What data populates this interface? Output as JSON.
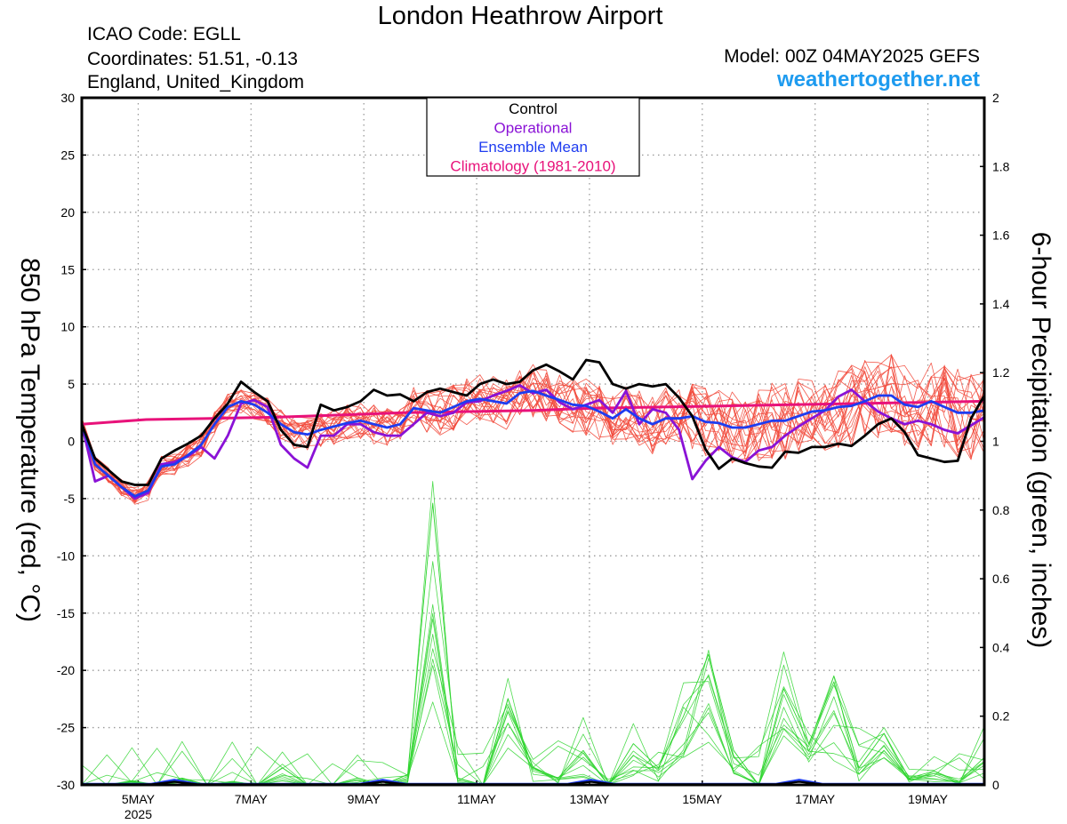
{
  "header": {
    "title": "London Heathrow Airport",
    "icao": "ICAO Code: EGLL",
    "coordinates": "Coordinates: 51.51, -0.13",
    "region": "England, United_Kingdom",
    "model": "Model: 00Z 04MAY2025 GEFS",
    "website": "weathertogether.net"
  },
  "colors": {
    "control": "#000000",
    "operational": "#8a12d6",
    "ensemble_mean": "#1e3cf0",
    "climatology": "#e8127a",
    "members": "#f24a3c",
    "precip": "#2fd52f",
    "website": "#1e9bef"
  },
  "chart_data": {
    "type": "line",
    "title": "London Heathrow Airport",
    "ylabel_left": "850 hPa Temperature (red, °C)",
    "ylabel_right": "6-hour Precipitation (green, inches)",
    "ylim_left": [
      -30,
      30
    ],
    "ylim_right": [
      0,
      2
    ],
    "yticks_left": [
      "30",
      "25",
      "20",
      "15",
      "10",
      "5",
      "0",
      "-5",
      "-10",
      "-15",
      "-20",
      "-25",
      "-30"
    ],
    "yticks_right": [
      "2",
      "1.8",
      "1.6",
      "1.4",
      "1.2",
      "1",
      "0.8",
      "0.6",
      "0.4",
      "0.2",
      "0"
    ],
    "x_range_hours": [
      0,
      384
    ],
    "x_ticks": [
      {
        "label": "5MAY",
        "hours": 24
      },
      {
        "label": "7MAY",
        "hours": 72
      },
      {
        "label": "9MAY",
        "hours": 120
      },
      {
        "label": "11MAY",
        "hours": 168
      },
      {
        "label": "13MAY",
        "hours": 216
      },
      {
        "label": "15MAY",
        "hours": 264
      },
      {
        "label": "17MAY",
        "hours": 312
      },
      {
        "label": "19MAY",
        "hours": 360
      }
    ],
    "x_year_label": "2025",
    "grid": true,
    "legend_position": "top-center",
    "legend": [
      "Control",
      "Operational",
      "Ensemble Mean",
      "Climatology (1981-2010)"
    ],
    "series": [
      {
        "name": "Control",
        "axis": "left",
        "values": [
          1.5,
          -1.5,
          -2.5,
          -3.5,
          -3.8,
          -3.8,
          -1.5,
          -0.8,
          -0.2,
          0.5,
          2.0,
          3.3,
          5.2,
          4.3,
          3.5,
          1.0,
          -0.3,
          -0.5,
          3.2,
          2.7,
          3.0,
          3.5,
          4.5,
          4.0,
          4.1,
          3.5,
          4.3,
          4.6,
          4.3,
          4.0,
          5.0,
          5.4,
          5.0,
          5.2,
          6.2,
          6.7,
          6.1,
          5.4,
          7.1,
          6.9,
          5.0,
          4.6,
          5.0,
          4.8,
          5.0,
          3.8,
          2.2,
          -0.7,
          -2.4,
          -1.5,
          -1.9,
          -2.2,
          -2.3,
          -0.9,
          -1.0,
          -0.5,
          -0.5,
          -0.2,
          -0.4,
          0.5,
          1.5,
          2.0,
          0.8,
          -1.2,
          -1.5,
          -1.8,
          -1.7,
          2.0,
          4.0
        ]
      },
      {
        "name": "Operational",
        "axis": "left",
        "values": [
          1.5,
          -3.5,
          -3.0,
          -4.0,
          -5.0,
          -4.5,
          -2.0,
          -1.8,
          -1.3,
          -0.5,
          -1.5,
          0.5,
          3.3,
          3.6,
          3.0,
          -0.3,
          -1.5,
          -2.3,
          0.5,
          0.5,
          1.5,
          1.5,
          0.8,
          0.5,
          0.5,
          1.5,
          2.5,
          2.2,
          2.5,
          3.4,
          3.5,
          4.0,
          4.4,
          4.9,
          4.2,
          4.5,
          3.4,
          2.8,
          3.2,
          3.6,
          2.5,
          4.4,
          1.5,
          2.8,
          2.5,
          1.0,
          -3.3,
          -1.7,
          -0.5,
          -1.4,
          -1.8,
          -0.8,
          -0.5,
          0.5,
          1.3,
          2.0,
          2.7,
          3.9,
          4.5,
          3.5,
          2.6,
          2.0,
          1.5,
          1.8,
          1.5,
          1.0,
          0.7,
          1.4,
          2.1
        ]
      },
      {
        "name": "Ensemble Mean",
        "axis": "left",
        "values": [
          1.5,
          -2.0,
          -3.0,
          -4.0,
          -4.8,
          -4.3,
          -2.2,
          -2.0,
          -1.2,
          -0.3,
          1.5,
          3.0,
          3.5,
          3.2,
          2.5,
          1.5,
          0.8,
          0.6,
          1.0,
          1.3,
          1.6,
          1.8,
          1.5,
          1.2,
          1.5,
          2.9,
          2.7,
          2.5,
          3.0,
          3.5,
          3.7,
          3.5,
          3.3,
          4.2,
          4.4,
          4.0,
          3.6,
          3.2,
          3.1,
          2.6,
          2.0,
          2.8,
          2.0,
          1.5,
          2.0,
          2.0,
          2.2,
          1.7,
          1.6,
          1.2,
          1.2,
          1.5,
          1.8,
          1.8,
          2.2,
          2.6,
          2.7,
          3.0,
          3.1,
          3.5,
          4.0,
          4.0,
          3.2,
          3.0,
          3.5,
          3.0,
          2.5,
          2.5,
          2.7
        ]
      },
      {
        "name": "Climatology (1981-2010)",
        "axis": "left",
        "values": [
          1.5,
          1.9,
          2.0,
          2.1,
          2.3,
          2.5,
          2.6,
          2.7,
          2.9,
          3.0,
          3.1,
          3.2,
          3.3,
          3.4,
          3.5
        ]
      },
      {
        "name": "",
        "axis": "right",
        "kind": "precip_sample",
        "values": [
          0,
          0,
          0.01,
          0,
          0.02,
          0,
          0.01,
          0,
          0.05,
          0,
          0,
          0.02,
          0,
          0.03,
          0.82,
          0.02,
          0,
          0.25,
          0.05,
          0.02,
          0.1,
          0,
          0.12,
          0.05,
          0.2,
          0.38,
          0.1,
          0,
          0.28,
          0.12,
          0.3,
          0.05,
          0.15,
          0.02,
          0.04,
          0.01,
          0.08
        ]
      }
    ]
  }
}
